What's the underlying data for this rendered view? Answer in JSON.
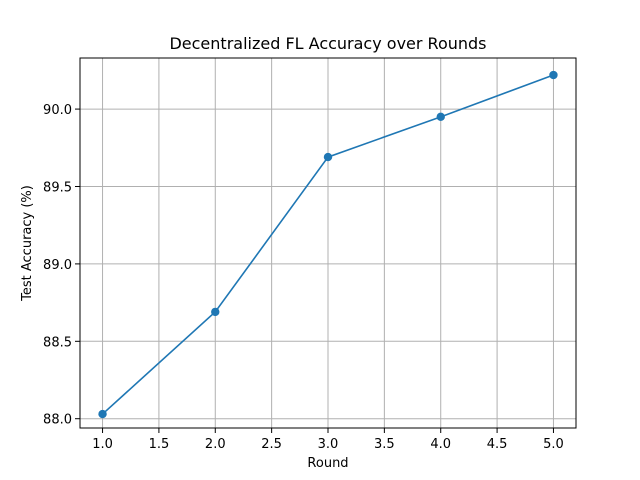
{
  "chart_data": {
    "type": "line",
    "title": "Decentralized FL Accuracy over Rounds",
    "xlabel": "Round",
    "ylabel": "Test Accuracy (%)",
    "x": [
      1,
      2,
      3,
      4,
      5
    ],
    "series": [
      {
        "values": [
          88.03,
          88.69,
          89.69,
          89.95,
          90.22
        ],
        "color": "#1f77b4",
        "marker": "circle"
      }
    ],
    "xlim": [
      0.8,
      5.2
    ],
    "ylim": [
      87.94,
      90.33
    ],
    "xticks": [
      "1.0",
      "1.5",
      "2.0",
      "2.5",
      "3.0",
      "3.5",
      "4.0",
      "4.5",
      "5.0"
    ],
    "yticks": [
      "88.0",
      "88.5",
      "89.0",
      "89.5",
      "90.0"
    ],
    "grid": true
  }
}
